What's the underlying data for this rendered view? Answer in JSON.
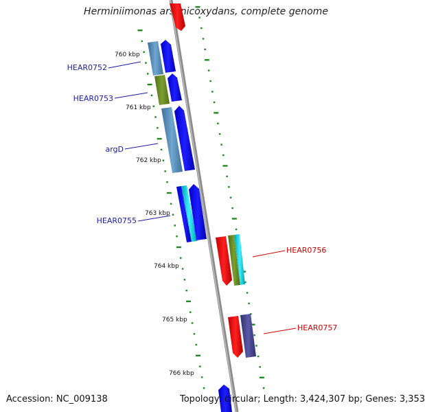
{
  "title": "Herminiimonas arsenicoxydans, complete genome",
  "footer": {
    "accession": "Accession: NC_009138",
    "stats": "Topology: circular; Length: 3,424,307 bp; Genes: 3,353"
  },
  "colors": {
    "backbone": "#8c8c8c",
    "ticks": "#1f8a1f",
    "forward_label": "#1a1aa6",
    "reverse_label": "#cc0000"
  },
  "kbp_labels": [
    "760 kbp",
    "761 kbp",
    "762 kbp",
    "763 kbp",
    "764 kbp",
    "765 kbp",
    "766 kbp"
  ],
  "forward_gene_labels": [
    "HEAR0752",
    "HEAR0753",
    "argD",
    "HEAR0755"
  ],
  "reverse_gene_labels": [
    "HEAR0756",
    "HEAR0757"
  ]
}
